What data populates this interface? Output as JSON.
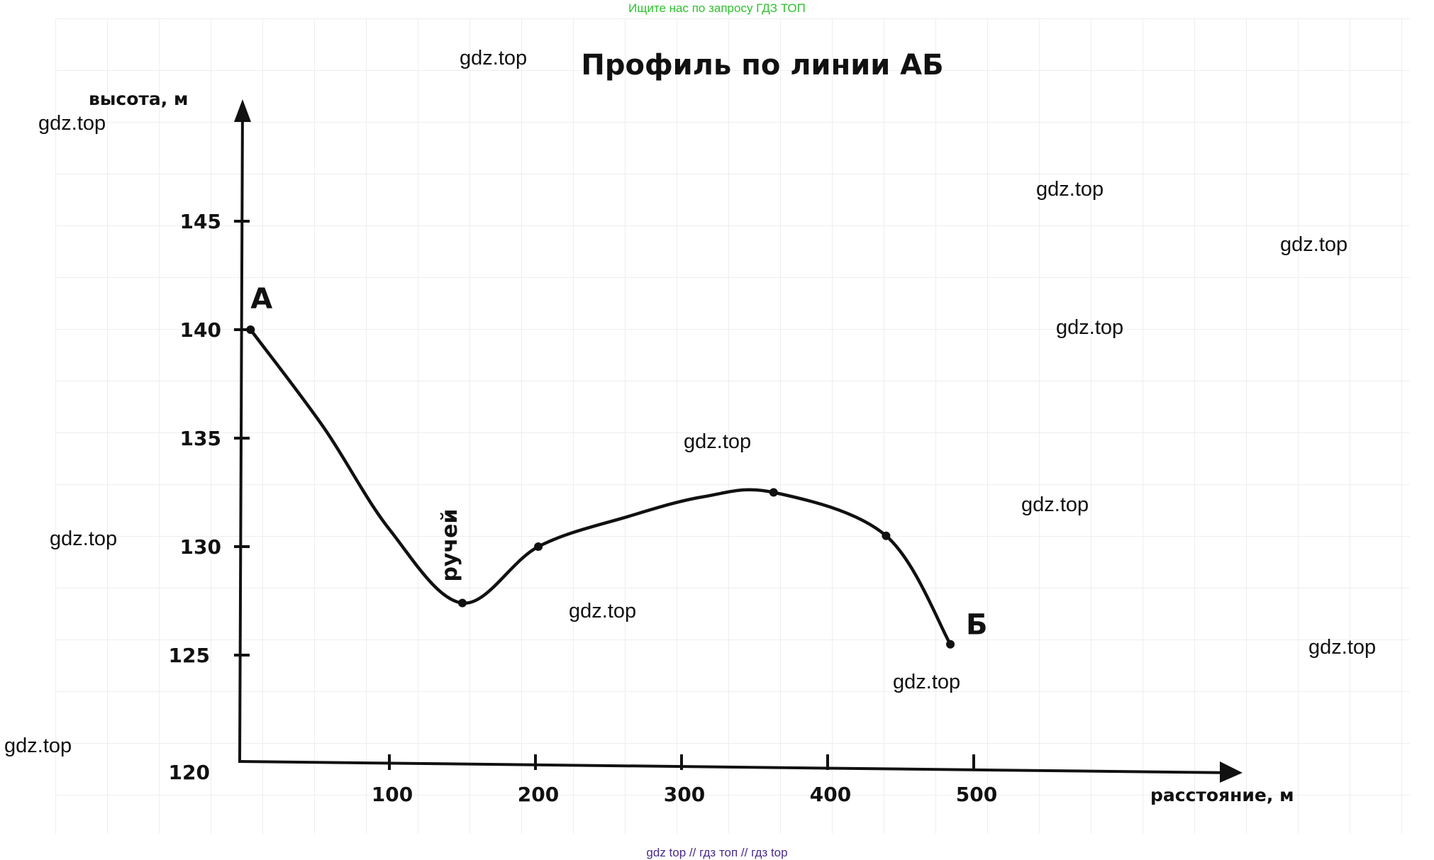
{
  "banner": "Ищите нас по запросу ГДЗ ТОП",
  "footer": "gdz top  //  гдз топ  //  гдз top",
  "watermarks": [
    "gdz.top",
    "gdz.top",
    "gdz.top",
    "gdz.top",
    "gdz.top",
    "gdz.top",
    "gdz.top",
    "gdz.top",
    "gdz.top",
    "gdz.top",
    "gdz.top",
    "gdz.top"
  ],
  "chart_data": {
    "type": "line",
    "title": "Профиль по линии АБ",
    "xlabel": "расстояние, м",
    "ylabel": "высота, м",
    "xlim": [
      0,
      600
    ],
    "ylim": [
      120,
      150
    ],
    "xticks": [
      100,
      200,
      300,
      400,
      500
    ],
    "xtick_labels": [
      "100",
      "200",
      "300",
      "400",
      "500"
    ],
    "yticks": [
      145,
      140,
      135,
      130,
      125,
      120
    ],
    "ytick_labels": [
      "145",
      "140",
      "135",
      "130",
      "125",
      "120"
    ],
    "grid": true,
    "series": [
      {
        "name": "profile",
        "x": [
          5,
          55,
          100,
          150,
          202,
          264,
          315,
          363,
          440,
          484
        ],
        "y": [
          140,
          135.5,
          130.8,
          127.4,
          130,
          131.4,
          132.3,
          132.5,
          130.5,
          125.5
        ]
      }
    ],
    "markers": [
      {
        "x": 5,
        "y": 140
      },
      {
        "x": 150,
        "y": 127.4
      },
      {
        "x": 202,
        "y": 130
      },
      {
        "x": 363,
        "y": 132.5
      },
      {
        "x": 440,
        "y": 130.5
      },
      {
        "x": 484,
        "y": 125.5
      }
    ],
    "annotations": [
      {
        "text": "А",
        "x": 5,
        "y": 140
      },
      {
        "text": "Б",
        "x": 484,
        "y": 125.5
      },
      {
        "text": "ручей",
        "x": 150,
        "y": 127.4
      }
    ]
  }
}
